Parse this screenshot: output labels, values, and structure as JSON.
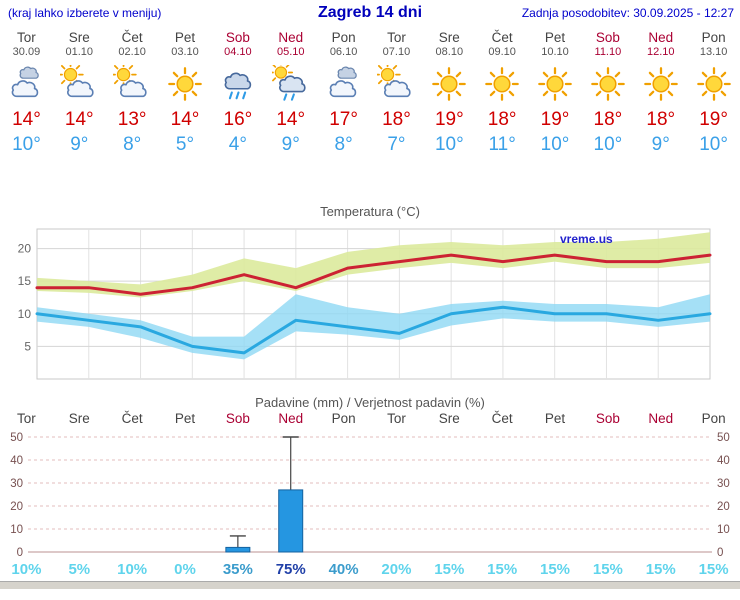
{
  "header": {
    "left_note": "(kraj lahko izberete v meniju)",
    "title": "Zagreb 14 dni",
    "updated": "Zadnja posodobitev: 30.09.2025 - 12:27"
  },
  "colors": {
    "header_blue": "#0000cc",
    "weekend_red": "#aa0033",
    "high_temp": "#d00000",
    "low_temp": "#3aa0e8",
    "temp_max_line": "#cc2233",
    "temp_min_line": "#29a8e0",
    "temp_max_band": "#dcea9c",
    "temp_min_band": "#8fd8f4",
    "bar_fill": "#2596e1",
    "bar_stroke": "#15629f"
  },
  "forecast": {
    "days": [
      {
        "name": "Tor",
        "date": "30.09",
        "icon": "cloudy",
        "high": "14°",
        "low": "10°",
        "weekend": false
      },
      {
        "name": "Sre",
        "date": "01.10",
        "icon": "partly-cloudy",
        "high": "14°",
        "low": "9°",
        "weekend": false
      },
      {
        "name": "Čet",
        "date": "02.10",
        "icon": "partly-cloudy",
        "high": "13°",
        "low": "8°",
        "weekend": false
      },
      {
        "name": "Pet",
        "date": "03.10",
        "icon": "sunny",
        "high": "14°",
        "low": "5°",
        "weekend": false
      },
      {
        "name": "Sob",
        "date": "04.10",
        "icon": "rain",
        "high": "16°",
        "low": "4°",
        "weekend": true
      },
      {
        "name": "Ned",
        "date": "05.10",
        "icon": "rain-sun",
        "high": "14°",
        "low": "9°",
        "weekend": true
      },
      {
        "name": "Pon",
        "date": "06.10",
        "icon": "cloudy",
        "high": "17°",
        "low": "8°",
        "weekend": false
      },
      {
        "name": "Tor",
        "date": "07.10",
        "icon": "partly-cloudy",
        "high": "18°",
        "low": "7°",
        "weekend": false
      },
      {
        "name": "Sre",
        "date": "08.10",
        "icon": "sunny",
        "high": "19°",
        "low": "10°",
        "weekend": false
      },
      {
        "name": "Čet",
        "date": "09.10",
        "icon": "sunny",
        "high": "18°",
        "low": "11°",
        "weekend": false
      },
      {
        "name": "Pet",
        "date": "10.10",
        "icon": "sunny",
        "high": "19°",
        "low": "10°",
        "weekend": false
      },
      {
        "name": "Sob",
        "date": "11.10",
        "icon": "sunny",
        "high": "18°",
        "low": "10°",
        "weekend": true
      },
      {
        "name": "Ned",
        "date": "12.10",
        "icon": "sunny",
        "high": "18°",
        "low": "9°",
        "weekend": true
      },
      {
        "name": "Pon",
        "date": "13.10",
        "icon": "sunny",
        "high": "19°",
        "low": "10°",
        "weekend": false
      }
    ]
  },
  "chart_data": [
    {
      "type": "area",
      "title": "Temperatura (°C)",
      "watermark": "vreme.us",
      "categories": [
        "Tor",
        "Sre",
        "Čet",
        "Pet",
        "Sob",
        "Ned",
        "Pon",
        "Tor",
        "Sre",
        "Čet",
        "Pet",
        "Sob",
        "Ned",
        "Pon"
      ],
      "ylim": [
        0,
        23
      ],
      "yticks": [
        5,
        10,
        15,
        20
      ],
      "series": [
        {
          "name": "temp_max",
          "values": [
            14,
            14,
            13,
            14,
            16,
            14,
            17,
            18,
            19,
            18,
            19,
            18,
            18,
            19
          ]
        },
        {
          "name": "temp_max_band_upper",
          "values": [
            15.5,
            15,
            14.5,
            16,
            18.5,
            17,
            19.5,
            20.5,
            21,
            20.5,
            21,
            21,
            21.5,
            22.5
          ]
        },
        {
          "name": "temp_max_band_lower",
          "values": [
            13.5,
            13.2,
            12.5,
            13.5,
            15,
            13.5,
            16,
            17,
            17.8,
            17,
            18,
            17,
            17,
            17.8
          ]
        },
        {
          "name": "temp_min",
          "values": [
            10,
            9,
            8,
            5,
            4,
            9,
            8,
            7,
            10,
            11,
            10,
            10,
            9,
            10
          ]
        },
        {
          "name": "temp_min_band_upper",
          "values": [
            11,
            10,
            9,
            6.5,
            6.5,
            13,
            11,
            10,
            11.5,
            12,
            11.5,
            11.5,
            11,
            13
          ]
        },
        {
          "name": "temp_min_band_lower",
          "values": [
            8.8,
            8,
            6.3,
            4,
            3,
            7.3,
            6.8,
            6,
            8.2,
            9.3,
            8.8,
            8.8,
            8,
            8.8
          ]
        }
      ]
    },
    {
      "type": "bar",
      "title": "Padavine (mm) / Verjetnost padavin (%)",
      "categories": [
        "Tor",
        "Sre",
        "Čet",
        "Pet",
        "Sob",
        "Ned",
        "Pon",
        "Tor",
        "Sre",
        "Čet",
        "Pet",
        "Sob",
        "Ned",
        "Pon"
      ],
      "ylim": [
        0,
        52
      ],
      "yticks": [
        0,
        10,
        20,
        30,
        40,
        50
      ],
      "values": [
        0,
        0,
        0,
        0,
        2,
        27,
        0,
        0,
        0,
        0,
        0,
        0,
        0,
        0
      ],
      "whisker_max": [
        0,
        0,
        0,
        0,
        7,
        50,
        0,
        0,
        0,
        0,
        0,
        0,
        0,
        0
      ],
      "probabilities": [
        {
          "text": "10%",
          "level": "low"
        },
        {
          "text": "5%",
          "level": "low"
        },
        {
          "text": "10%",
          "level": "low"
        },
        {
          "text": "0%",
          "level": "low"
        },
        {
          "text": "35%",
          "level": "mid"
        },
        {
          "text": "75%",
          "level": "high"
        },
        {
          "text": "40%",
          "level": "mid"
        },
        {
          "text": "20%",
          "level": "low"
        },
        {
          "text": "15%",
          "level": "low"
        },
        {
          "text": "15%",
          "level": "low"
        },
        {
          "text": "15%",
          "level": "low"
        },
        {
          "text": "15%",
          "level": "low"
        },
        {
          "text": "15%",
          "level": "low"
        },
        {
          "text": "15%",
          "level": "low"
        }
      ]
    }
  ]
}
